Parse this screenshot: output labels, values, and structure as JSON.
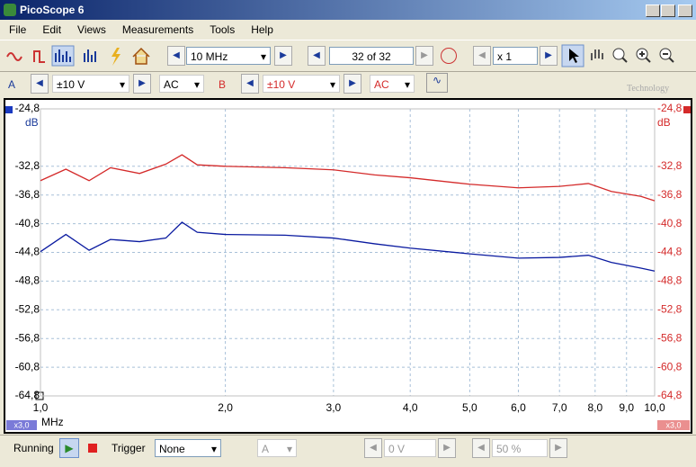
{
  "window": {
    "title": "PicoScope 6"
  },
  "menu": [
    "File",
    "Edit",
    "Views",
    "Measurements",
    "Tools",
    "Help"
  ],
  "toolbar": {
    "collection_time": "10 MHz",
    "buffer": "32 of 32",
    "zoom": "x 1",
    "logo": "Technology"
  },
  "channels": [
    {
      "name": "A",
      "range": "±10 V",
      "coupling": "AC"
    },
    {
      "name": "B",
      "range": "±10 V",
      "coupling": "AC"
    }
  ],
  "chart_data": {
    "type": "line",
    "x_unit": "MHz",
    "y_unit": "dB",
    "x_scale_label": "x3,0",
    "log_x": true,
    "grid": true,
    "x": [
      1.0,
      1.1,
      1.2,
      1.3,
      1.45,
      1.6,
      1.7,
      1.8,
      2.0,
      2.5,
      3.0,
      3.5,
      4.0,
      5.0,
      6.0,
      7.0,
      7.8,
      8.5,
      9.5,
      10.0
    ],
    "xlim": [
      1.0,
      10.0
    ],
    "xticks": [
      {
        "value": 1.0,
        "label": "1,0"
      },
      {
        "value": 2.0,
        "label": "2,0"
      },
      {
        "value": 3.0,
        "label": "3,0"
      },
      {
        "value": 4.0,
        "label": "4,0"
      },
      {
        "value": 5.0,
        "label": "5,0"
      },
      {
        "value": 6.0,
        "label": "6,0"
      },
      {
        "value": 7.0,
        "label": "7,0"
      },
      {
        "value": 8.0,
        "label": "8,0"
      },
      {
        "value": 9.0,
        "label": "9,0"
      },
      {
        "value": 10.0,
        "label": "10,0"
      }
    ],
    "ylim": [
      -64.8,
      -24.8
    ],
    "yticks": [
      {
        "value": -24.8,
        "label": "-24,8"
      },
      {
        "value": -32.8,
        "label": "-32,8"
      },
      {
        "value": -36.8,
        "label": "-36,8"
      },
      {
        "value": -40.8,
        "label": "-40,8"
      },
      {
        "value": -44.8,
        "label": "-44,8"
      },
      {
        "value": -48.8,
        "label": "-48,8"
      },
      {
        "value": -52.8,
        "label": "-52,8"
      },
      {
        "value": -56.8,
        "label": "-56,8"
      },
      {
        "value": -60.8,
        "label": "-60,8"
      },
      {
        "value": -64.8,
        "label": "-64,8"
      }
    ],
    "series": [
      {
        "name": "B",
        "color": "#d42a2a",
        "values": [
          -34.8,
          -33.2,
          -34.8,
          -33.0,
          -33.8,
          -32.5,
          -31.2,
          -32.6,
          -32.8,
          -33.0,
          -33.3,
          -34.0,
          -34.4,
          -35.3,
          -35.8,
          -35.6,
          -35.2,
          -36.3,
          -37.0,
          -37.6
        ]
      },
      {
        "name": "A",
        "color": "#0a1aa0",
        "values": [
          -44.7,
          -42.3,
          -44.5,
          -43.0,
          -43.3,
          -42.8,
          -40.6,
          -42.0,
          -42.3,
          -42.4,
          -42.8,
          -43.6,
          -44.2,
          -45.0,
          -45.6,
          -45.5,
          -45.2,
          -46.2,
          -47.0,
          -47.4
        ]
      }
    ]
  },
  "status": {
    "run_state": "Running",
    "trigger_label": "Trigger",
    "trigger_mode": "None",
    "trigger_channel": "A",
    "trigger_level": "0 V",
    "pre_trigger": "50 %"
  }
}
